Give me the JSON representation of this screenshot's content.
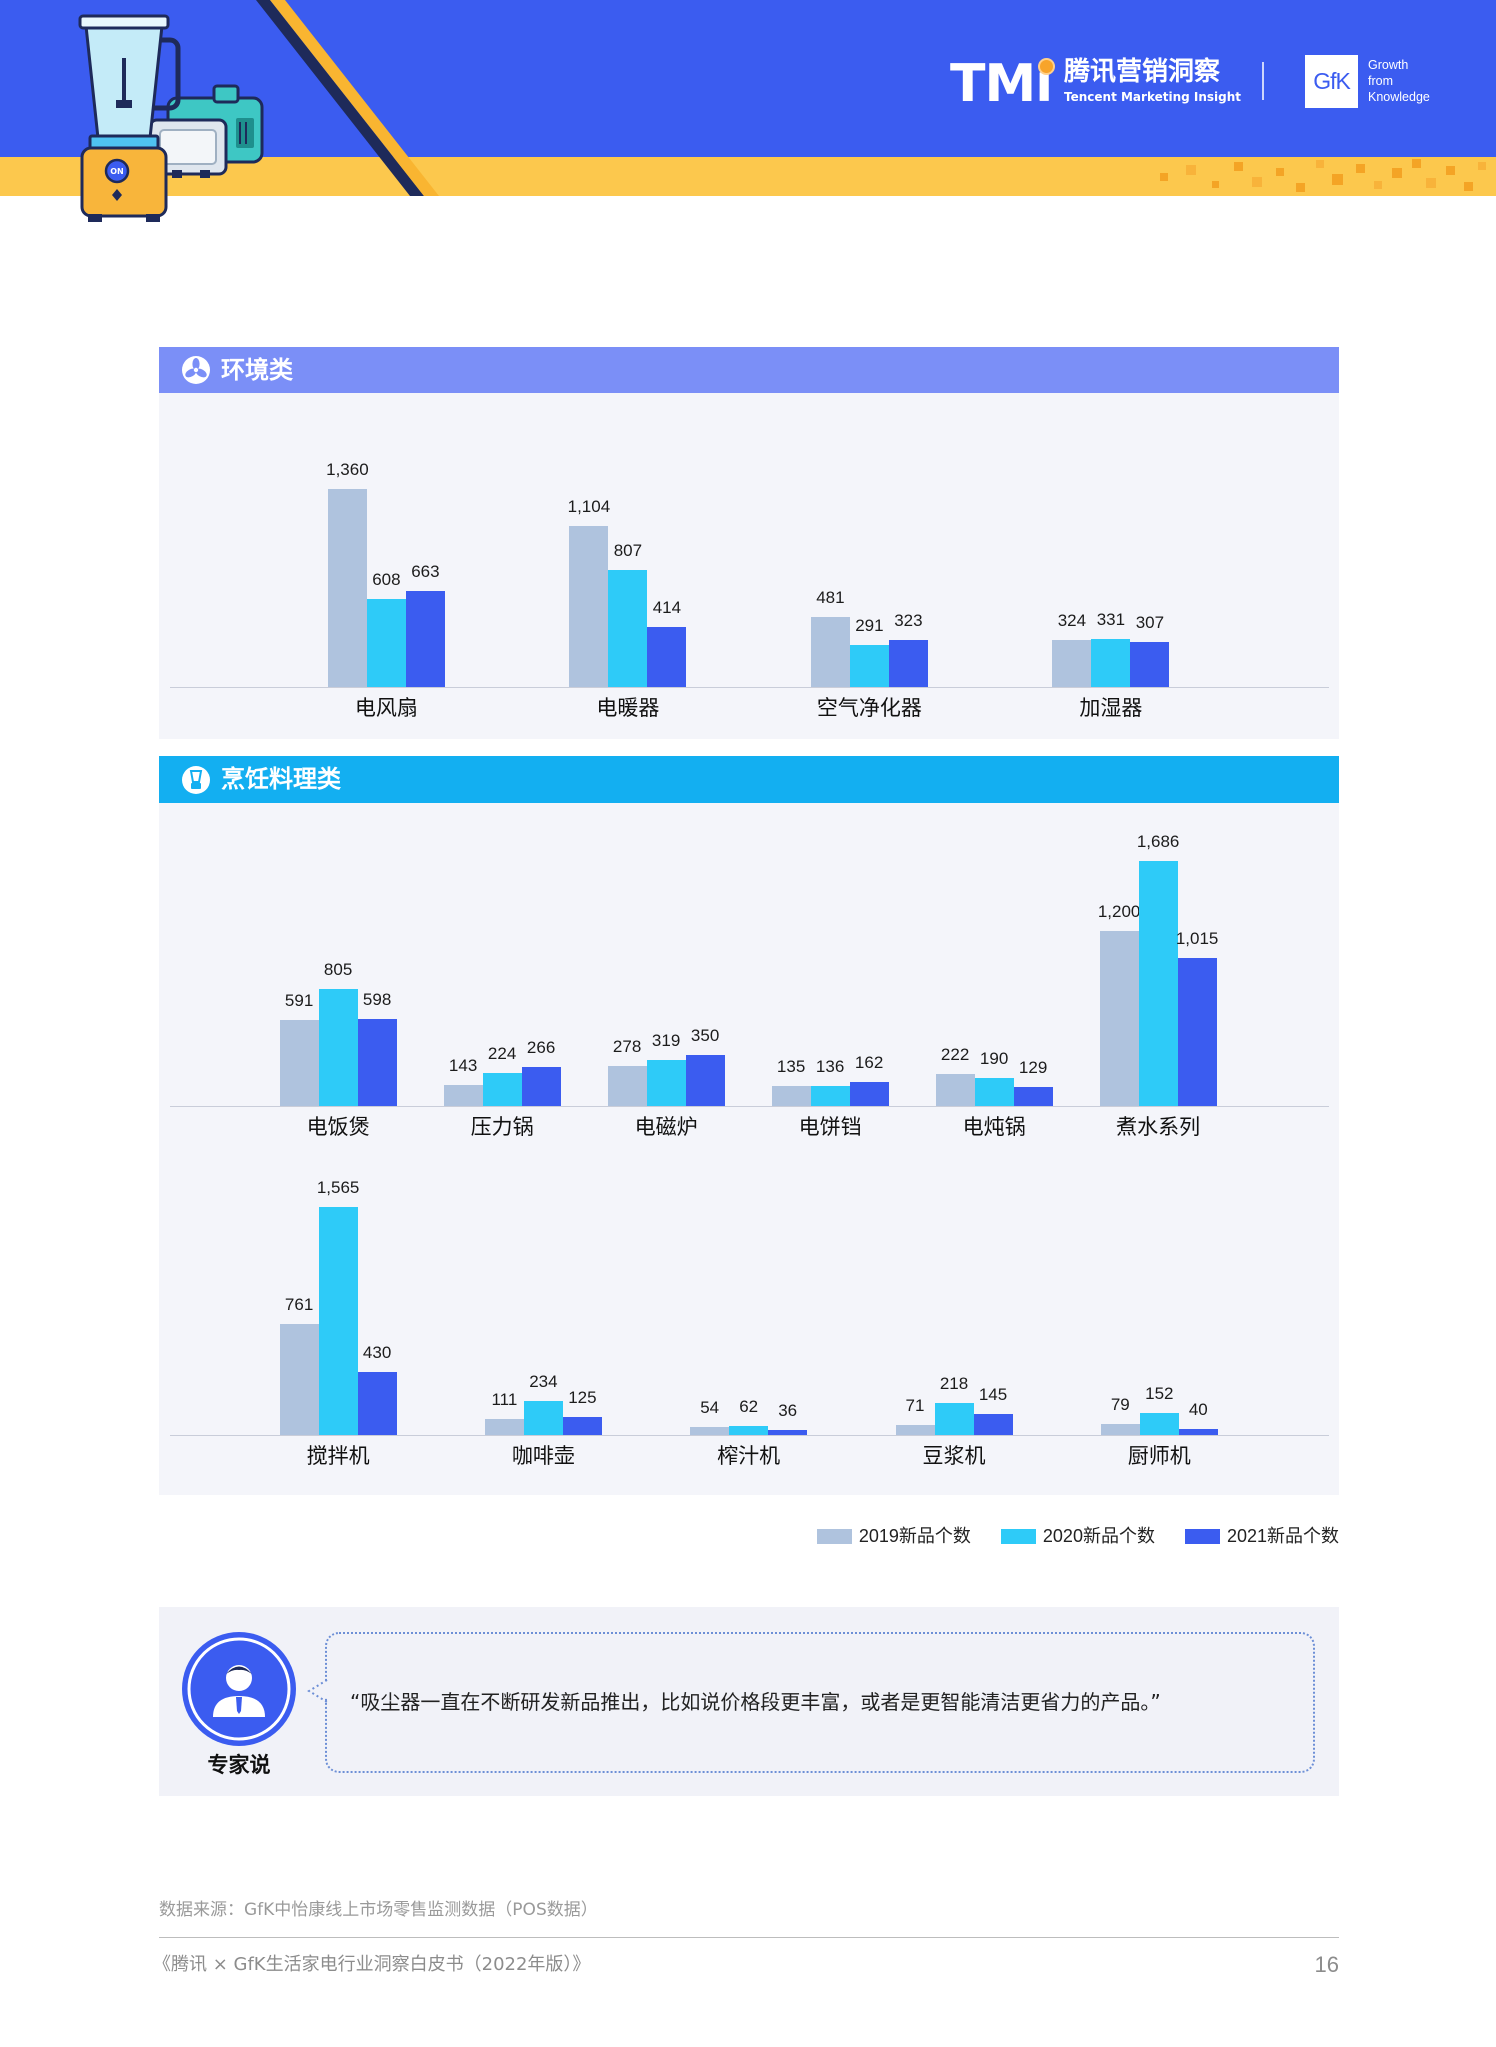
{
  "header": {
    "illustration_button": "ON",
    "tmi": {
      "mark": "TMi",
      "name_cn": "腾讯营销洞察",
      "name_en": "Tencent Marketing Insight"
    },
    "gfk": {
      "mark": "GfK",
      "tagline_1": "Growth",
      "tagline_2": "from",
      "tagline_3": "Knowledge"
    },
    "colors": {
      "band": "#3b5cf0",
      "stripe": "#fcc84d",
      "accent_dot": "#f7a42a"
    }
  },
  "sections": [
    {
      "icon": "fan-icon",
      "color": "#7b8ff7"
    },
    {
      "icon": "blender-icon",
      "color": "#13aff1"
    }
  ],
  "chart_data": {
    "type": "bar",
    "grid": false,
    "legend_position": "bottom-right",
    "series": [
      {
        "name": "2019新品个数",
        "color": "#afc3de"
      },
      {
        "name": "2020新品个数",
        "color": "#2ecbf8"
      },
      {
        "name": "2021新品个数",
        "color": "#3b5cf0"
      }
    ],
    "panels": [
      {
        "title": "环境类",
        "categories": [
          "电风扇",
          "电暖器",
          "空气净化器",
          "加湿器"
        ],
        "values": [
          [
            1360,
            608,
            663
          ],
          [
            1104,
            807,
            414
          ],
          [
            481,
            291,
            323
          ],
          [
            324,
            331,
            307
          ]
        ]
      },
      {
        "title": "烹饪料理类",
        "categories": [
          "电饭煲",
          "压力锅",
          "电磁炉",
          "电饼铛",
          "电炖锅",
          "煮水系列"
        ],
        "values": [
          [
            591,
            805,
            598
          ],
          [
            143,
            224,
            266
          ],
          [
            278,
            319,
            350
          ],
          [
            135,
            136,
            162
          ],
          [
            222,
            190,
            129
          ],
          [
            1200,
            1686,
            1015
          ]
        ]
      },
      {
        "categories": [
          "搅拌机",
          "咖啡壶",
          "榨汁机",
          "豆浆机",
          "厨师机"
        ],
        "values": [
          [
            761,
            1565,
            430
          ],
          [
            111,
            234,
            125
          ],
          [
            54,
            62,
            36
          ],
          [
            71,
            218,
            145
          ],
          [
            79,
            152,
            40
          ]
        ]
      }
    ]
  },
  "expert": {
    "label": "专家说",
    "icon": "person-icon",
    "quote": "“吸尘器一直在不断研发新品推出，比如说价格段更丰富，或者是更智能清洁更省力的产品。”"
  },
  "source": "数据来源：GfK中怡康线上市场零售监测数据（POS数据）",
  "footer": {
    "title": "《腾讯 × GfK生活家电行业洞察白皮书（2022年版）》",
    "page": "16"
  }
}
